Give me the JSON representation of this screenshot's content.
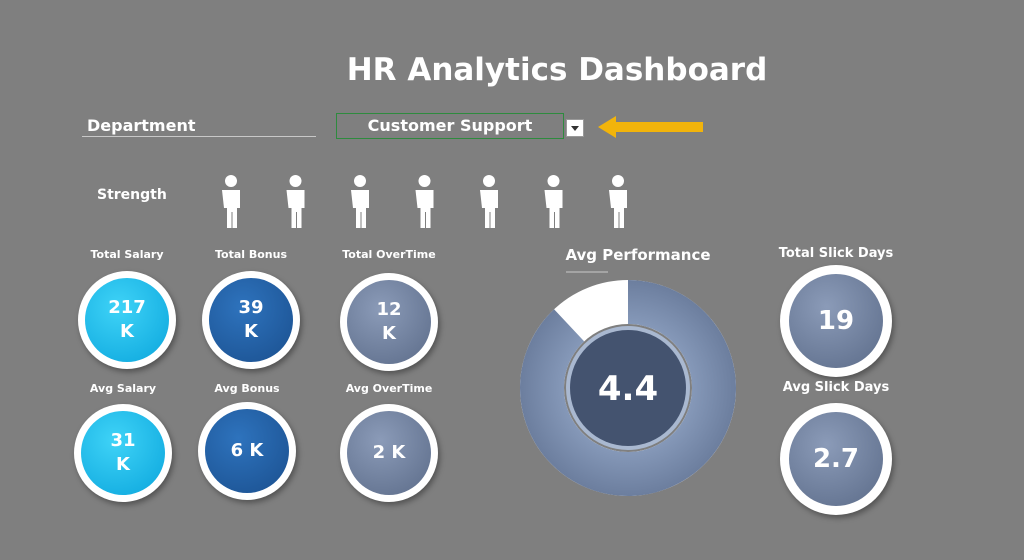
{
  "header": {
    "title": "HR Analytics Dashboard"
  },
  "filter": {
    "label": "Department",
    "value": "Customer Support"
  },
  "strength": {
    "label": "Strength",
    "count": 7
  },
  "kpis": [
    {
      "label": "Total Salary",
      "value": "217 K"
    },
    {
      "label": "Total Bonus",
      "value": "39 K"
    },
    {
      "label": "Total OverTime",
      "value": "12 K"
    },
    {
      "label": "Avg Salary",
      "value": "31 K"
    },
    {
      "label": "Avg Bonus",
      "value": "6 K"
    },
    {
      "label": "Avg OverTime",
      "value": "2 K"
    }
  ],
  "performance": {
    "label": "Avg Performance",
    "value": 4.4,
    "max": 5
  },
  "sick_days": [
    {
      "label": "Total Slick Days",
      "value": 19
    },
    {
      "label": "Avg Slick Days",
      "value": 2.7
    }
  ]
}
